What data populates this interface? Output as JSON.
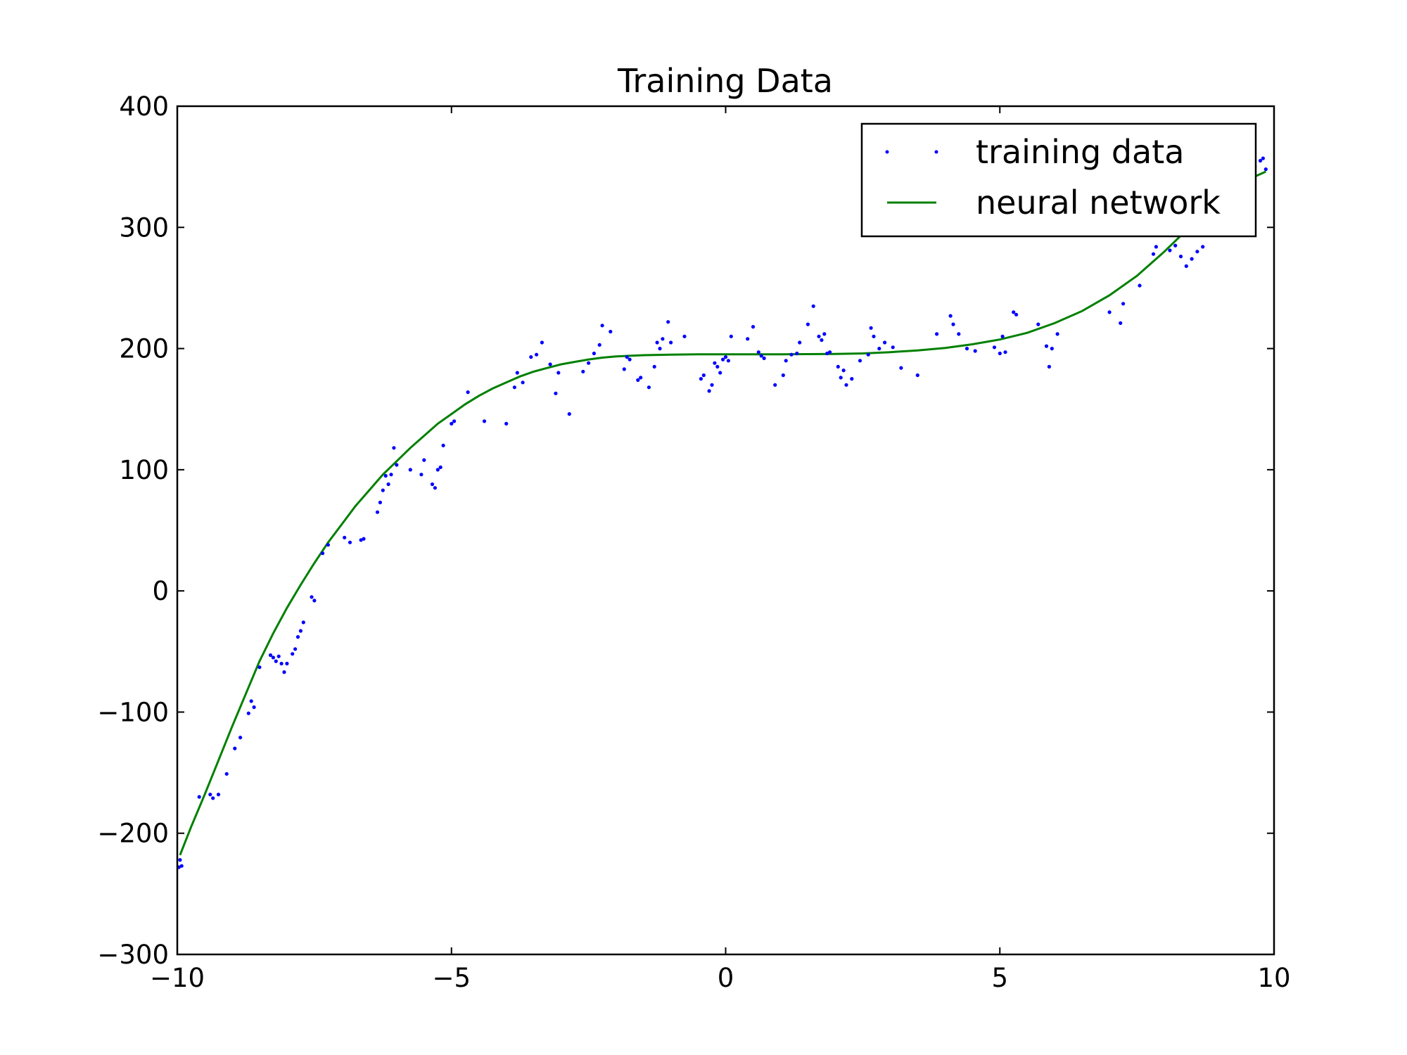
{
  "chart_data": {
    "type": "scatter",
    "title": "Training Data",
    "xlabel": "",
    "ylabel": "",
    "xlim": [
      -10,
      10
    ],
    "ylim": [
      -300,
      400
    ],
    "x_ticks": [
      -10,
      -5,
      0,
      5,
      10
    ],
    "y_ticks": [
      -300,
      -200,
      -100,
      0,
      100,
      200,
      300,
      400
    ],
    "x_tick_labels": [
      "−10",
      "−5",
      "0",
      "5",
      "10"
    ],
    "y_tick_labels": [
      "−300",
      "−200",
      "−100",
      "0",
      "100",
      "200",
      "300",
      "400"
    ],
    "grid": false,
    "legend_position": "top-right",
    "colors": {
      "training": "#0000ff",
      "network": "#008000"
    },
    "series": [
      {
        "name": "training data",
        "style": "points",
        "points": [
          [
            -9.95,
            -222
          ],
          [
            -9.97,
            -228
          ],
          [
            -9.92,
            -227
          ],
          [
            -9.6,
            -170
          ],
          [
            -9.4,
            -168
          ],
          [
            -9.35,
            -171
          ],
          [
            -9.25,
            -168
          ],
          [
            -9.1,
            -151
          ],
          [
            -8.95,
            -130
          ],
          [
            -8.85,
            -121
          ],
          [
            -8.7,
            -101
          ],
          [
            -8.65,
            -91
          ],
          [
            -8.6,
            -96
          ],
          [
            -8.5,
            -63
          ],
          [
            -8.3,
            -53
          ],
          [
            -8.25,
            -55
          ],
          [
            -8.2,
            -58
          ],
          [
            -8.15,
            -54
          ],
          [
            -8.1,
            -60
          ],
          [
            -8.05,
            -67
          ],
          [
            -8.0,
            -60
          ],
          [
            -7.9,
            -52
          ],
          [
            -7.85,
            -48
          ],
          [
            -7.8,
            -38
          ],
          [
            -7.75,
            -33
          ],
          [
            -7.7,
            -26
          ],
          [
            -7.55,
            -5
          ],
          [
            -7.5,
            -8
          ],
          [
            -7.35,
            31
          ],
          [
            -7.25,
            38
          ],
          [
            -6.95,
            44
          ],
          [
            -6.85,
            40
          ],
          [
            -6.65,
            42
          ],
          [
            -6.6,
            43
          ],
          [
            -6.35,
            65
          ],
          [
            -6.3,
            73
          ],
          [
            -6.25,
            83
          ],
          [
            -6.2,
            95
          ],
          [
            -6.15,
            88
          ],
          [
            -6.1,
            96
          ],
          [
            -6.05,
            118
          ],
          [
            -6.0,
            104
          ],
          [
            -5.75,
            100
          ],
          [
            -5.55,
            96
          ],
          [
            -5.5,
            108
          ],
          [
            -5.35,
            88
          ],
          [
            -5.3,
            85
          ],
          [
            -5.25,
            100
          ],
          [
            -5.2,
            102
          ],
          [
            -5.15,
            120
          ],
          [
            -5.0,
            138
          ],
          [
            -4.95,
            140
          ],
          [
            -4.7,
            164
          ],
          [
            -4.4,
            140
          ],
          [
            -4.0,
            138
          ],
          [
            -3.85,
            168
          ],
          [
            -3.8,
            180
          ],
          [
            -3.7,
            172
          ],
          [
            -3.55,
            193
          ],
          [
            -3.45,
            195
          ],
          [
            -3.35,
            205
          ],
          [
            -3.2,
            187
          ],
          [
            -3.1,
            163
          ],
          [
            -3.05,
            180
          ],
          [
            -2.85,
            146
          ],
          [
            -2.6,
            181
          ],
          [
            -2.5,
            188
          ],
          [
            -2.4,
            196
          ],
          [
            -2.3,
            203
          ],
          [
            -2.25,
            219
          ],
          [
            -2.1,
            214
          ],
          [
            -1.85,
            183
          ],
          [
            -1.8,
            193
          ],
          [
            -1.75,
            191
          ],
          [
            -1.6,
            174
          ],
          [
            -1.55,
            176
          ],
          [
            -1.4,
            168
          ],
          [
            -1.3,
            185
          ],
          [
            -1.25,
            205
          ],
          [
            -1.2,
            200
          ],
          [
            -1.15,
            208
          ],
          [
            -1.05,
            222
          ],
          [
            -1.0,
            205
          ],
          [
            -0.75,
            210
          ],
          [
            -0.45,
            175
          ],
          [
            -0.4,
            178
          ],
          [
            -0.3,
            165
          ],
          [
            -0.25,
            170
          ],
          [
            -0.2,
            188
          ],
          [
            -0.15,
            185
          ],
          [
            -0.1,
            180
          ],
          [
            -0.05,
            191
          ],
          [
            0.0,
            193
          ],
          [
            0.05,
            190
          ],
          [
            0.1,
            210
          ],
          [
            0.4,
            208
          ],
          [
            0.5,
            218
          ],
          [
            0.6,
            197
          ],
          [
            0.65,
            194
          ],
          [
            0.7,
            192
          ],
          [
            0.9,
            170
          ],
          [
            1.05,
            178
          ],
          [
            1.1,
            190
          ],
          [
            1.2,
            195
          ],
          [
            1.3,
            196
          ],
          [
            1.35,
            205
          ],
          [
            1.5,
            220
          ],
          [
            1.6,
            235
          ],
          [
            1.7,
            210
          ],
          [
            1.75,
            207
          ],
          [
            1.8,
            212
          ],
          [
            1.85,
            196
          ],
          [
            1.9,
            197
          ],
          [
            2.05,
            185
          ],
          [
            2.1,
            176
          ],
          [
            2.15,
            182
          ],
          [
            2.2,
            170
          ],
          [
            2.3,
            175
          ],
          [
            2.45,
            190
          ],
          [
            2.6,
            195
          ],
          [
            2.65,
            217
          ],
          [
            2.7,
            210
          ],
          [
            2.8,
            200
          ],
          [
            2.9,
            205
          ],
          [
            3.05,
            201
          ],
          [
            3.2,
            184
          ],
          [
            3.5,
            178
          ],
          [
            3.85,
            212
          ],
          [
            4.1,
            227
          ],
          [
            4.15,
            220
          ],
          [
            4.25,
            212
          ],
          [
            4.4,
            200
          ],
          [
            4.55,
            198
          ],
          [
            4.9,
            201
          ],
          [
            5.0,
            196
          ],
          [
            5.05,
            210
          ],
          [
            5.1,
            197
          ],
          [
            5.25,
            230
          ],
          [
            5.3,
            228
          ],
          [
            5.7,
            220
          ],
          [
            5.85,
            202
          ],
          [
            5.9,
            185
          ],
          [
            5.95,
            200
          ],
          [
            6.05,
            212
          ],
          [
            7.0,
            230
          ],
          [
            7.2,
            221
          ],
          [
            7.25,
            237
          ],
          [
            7.55,
            252
          ],
          [
            7.8,
            278
          ],
          [
            7.85,
            284
          ],
          [
            8.1,
            281
          ],
          [
            8.2,
            285
          ],
          [
            8.3,
            276
          ],
          [
            8.4,
            268
          ],
          [
            8.5,
            274
          ],
          [
            8.6,
            280
          ],
          [
            8.7,
            284
          ],
          [
            9.35,
            352
          ],
          [
            9.45,
            360
          ],
          [
            9.65,
            350
          ],
          [
            9.75,
            355
          ],
          [
            9.8,
            357
          ],
          [
            9.85,
            348
          ]
        ]
      },
      {
        "name": "neural network",
        "style": "line",
        "points": [
          [
            -9.95,
            -218
          ],
          [
            -9.75,
            -195
          ],
          [
            -9.5,
            -168
          ],
          [
            -9.25,
            -140
          ],
          [
            -9.0,
            -112
          ],
          [
            -8.75,
            -85
          ],
          [
            -8.5,
            -58
          ],
          [
            -8.25,
            -35
          ],
          [
            -8.0,
            -14
          ],
          [
            -7.75,
            5
          ],
          [
            -7.5,
            23
          ],
          [
            -7.25,
            40
          ],
          [
            -7.0,
            55
          ],
          [
            -6.75,
            70
          ],
          [
            -6.5,
            83
          ],
          [
            -6.25,
            96
          ],
          [
            -6.0,
            107
          ],
          [
            -5.75,
            118
          ],
          [
            -5.5,
            128
          ],
          [
            -5.25,
            138
          ],
          [
            -5.0,
            146
          ],
          [
            -4.75,
            154
          ],
          [
            -4.5,
            161
          ],
          [
            -4.25,
            167
          ],
          [
            -4.0,
            172
          ],
          [
            -3.75,
            177
          ],
          [
            -3.5,
            181
          ],
          [
            -3.25,
            184
          ],
          [
            -3.0,
            187
          ],
          [
            -2.75,
            189
          ],
          [
            -2.5,
            191
          ],
          [
            -2.25,
            192.5
          ],
          [
            -2.0,
            193.5
          ],
          [
            -1.5,
            194.5
          ],
          [
            -1.0,
            195
          ],
          [
            -0.5,
            195.2
          ],
          [
            0.0,
            195.3
          ],
          [
            0.5,
            195.3
          ],
          [
            1.0,
            195.3
          ],
          [
            1.5,
            195.4
          ],
          [
            2.0,
            195.6
          ],
          [
            2.5,
            196
          ],
          [
            3.0,
            197
          ],
          [
            3.5,
            198.5
          ],
          [
            4.0,
            200.5
          ],
          [
            4.5,
            203.5
          ],
          [
            5.0,
            207.5
          ],
          [
            5.5,
            213
          ],
          [
            6.0,
            221
          ],
          [
            6.5,
            231
          ],
          [
            7.0,
            244
          ],
          [
            7.5,
            260
          ],
          [
            8.0,
            280
          ],
          [
            8.25,
            291
          ],
          [
            8.5,
            302
          ],
          [
            8.75,
            313
          ],
          [
            9.0,
            323
          ],
          [
            9.25,
            332
          ],
          [
            9.5,
            339
          ],
          [
            9.75,
            344
          ],
          [
            9.85,
            346
          ]
        ]
      }
    ]
  }
}
